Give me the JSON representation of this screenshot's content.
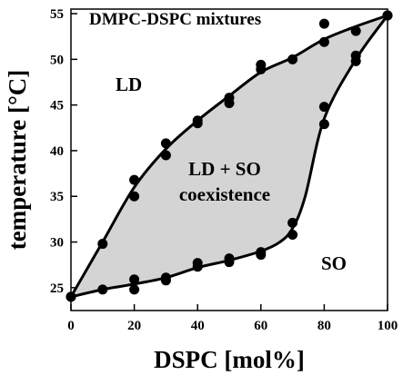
{
  "chart_data": {
    "type": "scatter",
    "title": "DMPC-DSPC mixtures",
    "xlabel": "DSPC [mol%]",
    "ylabel": "temperature [°C]",
    "xlim": [
      0,
      100
    ],
    "ylim": [
      22.5,
      55.5
    ],
    "x_ticks": [
      0,
      20,
      40,
      60,
      80,
      100
    ],
    "y_ticks": [
      25,
      30,
      35,
      40,
      45,
      50,
      55
    ],
    "grid": false,
    "legend": "none",
    "colors": {
      "points": "#000000",
      "coexistence_fill": "#d4d4d4",
      "boundary": "#000000"
    },
    "region_labels": {
      "ld": "LD",
      "so": "SO",
      "coexistence_line1": "LD + SO",
      "coexistence_line2": "coexistence"
    },
    "series": [
      {
        "role": "upper-boundary-points",
        "points": [
          [
            0,
            24.0
          ],
          [
            10,
            29.8
          ],
          [
            20,
            36.8
          ],
          [
            20,
            35.0
          ],
          [
            30,
            40.8
          ],
          [
            30,
            39.5
          ],
          [
            40,
            43.3
          ],
          [
            40,
            43.0
          ],
          [
            50,
            45.8
          ],
          [
            50,
            45.2
          ],
          [
            60,
            49.4
          ],
          [
            60,
            48.9
          ],
          [
            70,
            50.0
          ],
          [
            80,
            53.9
          ],
          [
            80,
            51.9
          ],
          [
            90,
            53.1
          ],
          [
            100,
            54.8
          ]
        ]
      },
      {
        "role": "lower-boundary-points",
        "points": [
          [
            0,
            24.0
          ],
          [
            10,
            24.8
          ],
          [
            20,
            25.9
          ],
          [
            20,
            24.8
          ],
          [
            30,
            26.1
          ],
          [
            30,
            25.8
          ],
          [
            40,
            27.7
          ],
          [
            40,
            27.3
          ],
          [
            50,
            28.2
          ],
          [
            50,
            27.8
          ],
          [
            60,
            28.9
          ],
          [
            60,
            28.6
          ],
          [
            70,
            32.1
          ],
          [
            70,
            30.8
          ],
          [
            80,
            44.8
          ],
          [
            80,
            42.9
          ],
          [
            90,
            50.4
          ],
          [
            90,
            49.8
          ],
          [
            100,
            54.8
          ]
        ]
      }
    ],
    "boundary_curves": {
      "upper": [
        [
          0,
          24.0
        ],
        [
          10,
          30.0
        ],
        [
          20,
          36.0
        ],
        [
          30,
          40.2
        ],
        [
          40,
          43.3
        ],
        [
          50,
          46.0
        ],
        [
          60,
          48.6
        ],
        [
          70,
          50.2
        ],
        [
          80,
          52.2
        ],
        [
          90,
          53.6
        ],
        [
          100,
          54.8
        ]
      ],
      "lower": [
        [
          0,
          24.0
        ],
        [
          10,
          24.8
        ],
        [
          20,
          25.4
        ],
        [
          30,
          26.1
        ],
        [
          40,
          27.2
        ],
        [
          50,
          28.0
        ],
        [
          60,
          29.0
        ],
        [
          66,
          30.0
        ],
        [
          70,
          31.5
        ],
        [
          74,
          35.0
        ],
        [
          80,
          43.5
        ],
        [
          90,
          50.0
        ],
        [
          100,
          54.8
        ]
      ]
    }
  }
}
